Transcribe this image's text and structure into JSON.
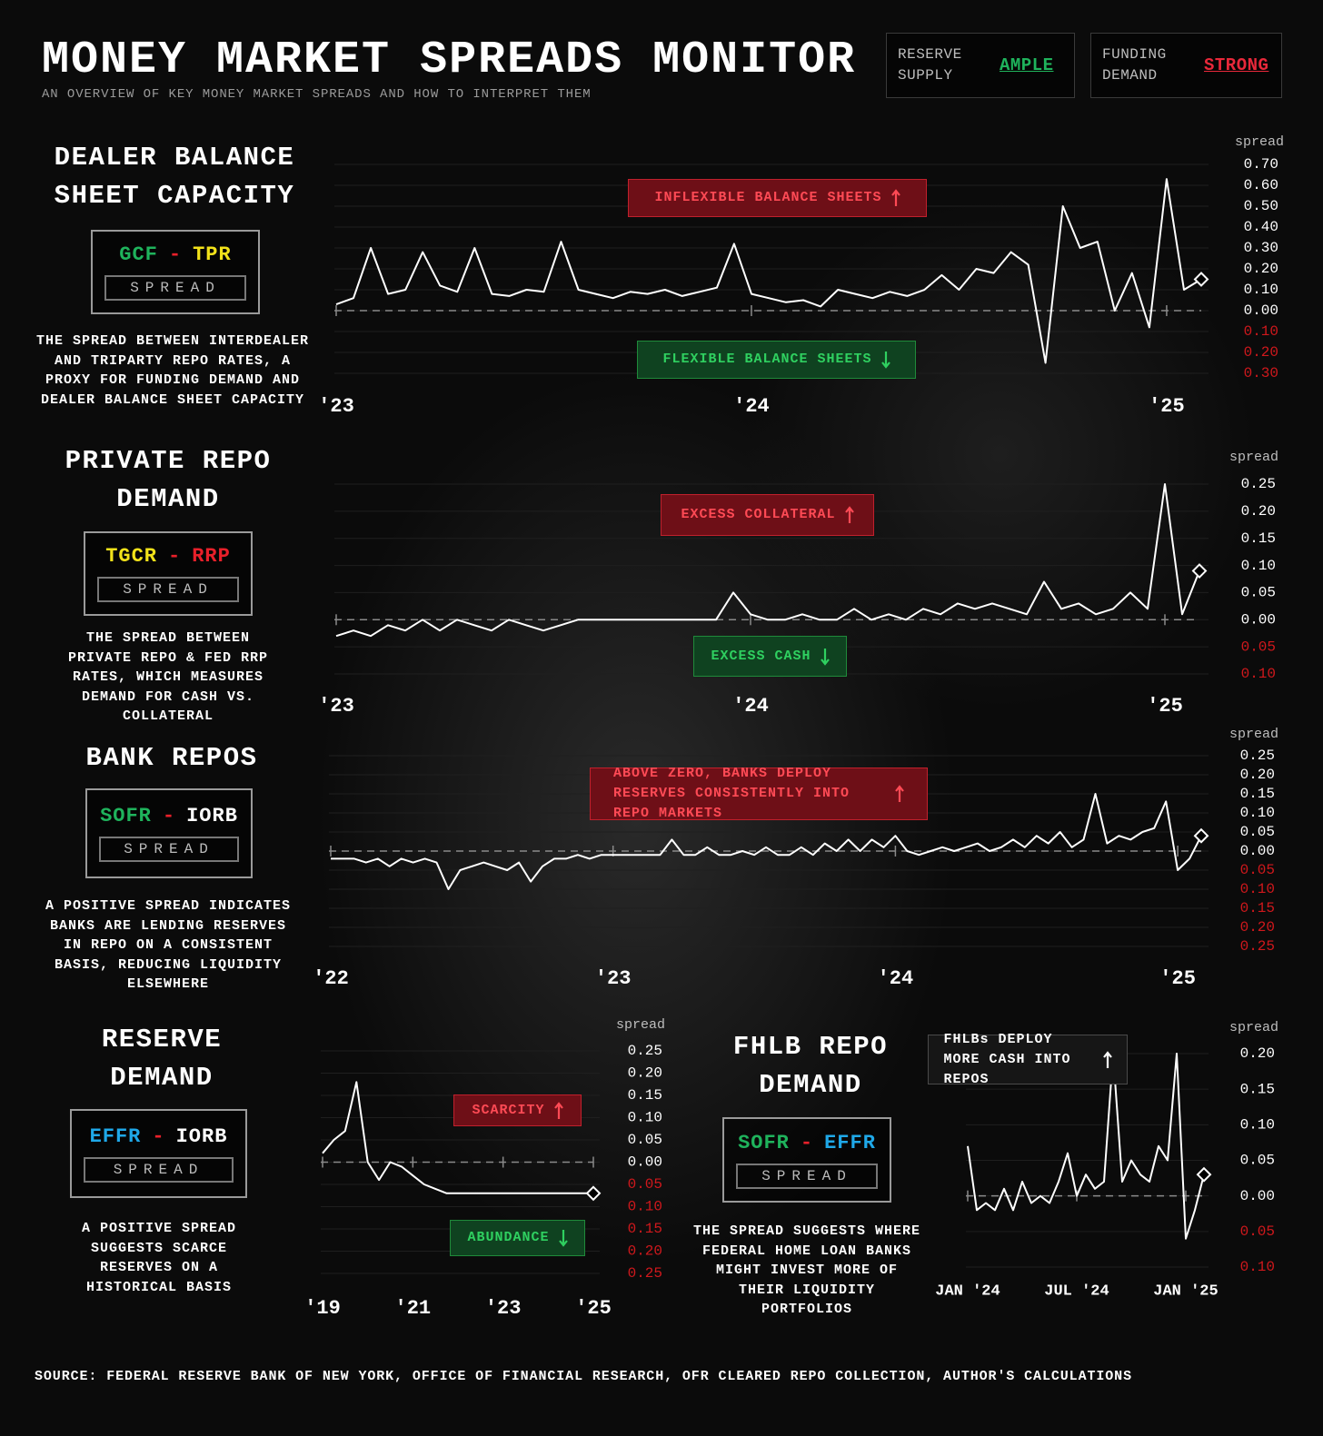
{
  "header": {
    "title": "MONEY MARKET SPREADS MONITOR",
    "subtitle": "AN OVERVIEW OF KEY MONEY MARKET SPREADS AND HOW TO INTERPRET THEM"
  },
  "status": [
    {
      "label": "RESERVE SUPPLY",
      "value": "AMPLE",
      "color": "#1fb35c"
    },
    {
      "label": "FUNDING DEMAND",
      "value": "STRONG",
      "color": "#e8283a"
    }
  ],
  "source": "SOURCE: FEDERAL RESERVE BANK OF NEW YORK, OFFICE OF FINANCIAL RESEARCH, OFR CLEARED REPO COLLECTION, AUTHOR'S CALCULATIONS",
  "chart_data": [
    {
      "type": "line",
      "title": "DEALER BALANCE SHEET CAPACITY",
      "formula": {
        "left": "GCF",
        "left_color": "#1fb35c",
        "op": "-",
        "op_color": "#e8202a",
        "right": "TPR",
        "right_color": "#f2e21a",
        "label": "SPREAD"
      },
      "description": "THE SPREAD BETWEEN INTERDEALER AND TRIPARTY REPO RATES, A PROXY FOR FUNDING DEMAND AND DEALER BALANCE SHEET CAPACITY",
      "y_label": "spread",
      "color": "#ffffff",
      "negative_tick_color": "#d0181c",
      "categories": [
        "'23",
        null,
        null,
        null,
        null,
        null,
        null,
        null,
        null,
        null,
        null,
        null,
        null,
        null,
        null,
        null,
        null,
        null,
        null,
        null,
        null,
        null,
        null,
        null,
        "'24",
        null,
        null,
        null,
        null,
        null,
        null,
        null,
        null,
        null,
        null,
        null,
        null,
        null,
        null,
        null,
        null,
        null,
        null,
        null,
        null,
        null,
        null,
        null,
        "'25",
        null,
        null
      ],
      "values": [
        0.03,
        0.06,
        0.3,
        0.08,
        0.1,
        0.28,
        0.12,
        0.09,
        0.3,
        0.08,
        0.07,
        0.1,
        0.09,
        0.33,
        0.1,
        0.08,
        0.06,
        0.09,
        0.08,
        0.1,
        0.07,
        0.09,
        0.11,
        0.32,
        0.08,
        0.06,
        0.04,
        0.05,
        0.02,
        0.1,
        0.08,
        0.06,
        0.09,
        0.07,
        0.1,
        0.17,
        0.1,
        0.2,
        0.18,
        0.28,
        0.22,
        -0.25,
        0.5,
        0.3,
        0.33,
        0.0,
        0.18,
        -0.08,
        0.63,
        0.1,
        0.15
      ],
      "ylim": [
        -0.3,
        0.7
      ],
      "yticks": [
        {
          "value": 0.7,
          "label": "0.70"
        },
        {
          "value": 0.6,
          "label": "0.60"
        },
        {
          "value": 0.5,
          "label": "0.50"
        },
        {
          "value": 0.4,
          "label": "0.40"
        },
        {
          "value": 0.3,
          "label": "0.30"
        },
        {
          "value": 0.2,
          "label": "0.20"
        },
        {
          "value": 0.1,
          "label": "0.10"
        },
        {
          "value": 0,
          "label": "0.00"
        },
        {
          "value": -0.1,
          "label": "0.10"
        },
        {
          "value": -0.2,
          "label": "0.20"
        },
        {
          "value": -0.3,
          "label": "0.30"
        }
      ],
      "grid": true,
      "annotations": [
        {
          "text": "INFLEXIBLE BALANCE SHEETS",
          "arrow": "up",
          "color": "#ff4a55",
          "fill": "#6e0f17",
          "stroke": "#c0202c"
        },
        {
          "text": "FLEXIBLE BALANCE SHEETS",
          "arrow": "down",
          "color": "#2fd060",
          "fill": "#0f4220",
          "stroke": "#1f8a3a"
        }
      ]
    },
    {
      "type": "line",
      "title": "PRIVATE REPO DEMAND",
      "formula": {
        "left": "TGCR",
        "left_color": "#f2e21a",
        "op": "-",
        "op_color": "#e8202a",
        "right": "RRP",
        "right_color": "#e8202a",
        "label": "SPREAD"
      },
      "description": "THE SPREAD BETWEEN PRIVATE REPO & FED RRP RATES, WHICH MEASURES DEMAND FOR CASH VS. COLLATERAL",
      "y_label": "spread",
      "color": "#ffffff",
      "negative_tick_color": "#d0181c",
      "categories": [
        "'23",
        null,
        null,
        null,
        null,
        null,
        null,
        null,
        null,
        null,
        null,
        null,
        null,
        null,
        null,
        null,
        null,
        null,
        null,
        null,
        null,
        null,
        null,
        null,
        "'24",
        null,
        null,
        null,
        null,
        null,
        null,
        null,
        null,
        null,
        null,
        null,
        null,
        null,
        null,
        null,
        null,
        null,
        null,
        null,
        null,
        null,
        null,
        null,
        "'25",
        null,
        null
      ],
      "values": [
        -0.03,
        -0.02,
        -0.03,
        -0.01,
        -0.02,
        0.0,
        -0.02,
        0.0,
        -0.01,
        -0.02,
        0.0,
        -0.01,
        -0.02,
        -0.01,
        0,
        0,
        0,
        0,
        0,
        0,
        0,
        0,
        0,
        0.05,
        0.01,
        0,
        0,
        0.01,
        0,
        0,
        0.02,
        0,
        0.01,
        0.0,
        0.02,
        0.01,
        0.03,
        0.02,
        0.03,
        0.02,
        0.01,
        0.07,
        0.02,
        0.03,
        0.01,
        0.02,
        0.05,
        0.02,
        0.25,
        0.01,
        0.09
      ],
      "ylim": [
        -0.1,
        0.25
      ],
      "yticks": [
        {
          "value": 0.25,
          "label": "0.25"
        },
        {
          "value": 0.2,
          "label": "0.20"
        },
        {
          "value": 0.15,
          "label": "0.15"
        },
        {
          "value": 0.1,
          "label": "0.10"
        },
        {
          "value": 0.05,
          "label": "0.05"
        },
        {
          "value": 0,
          "label": "0.00"
        },
        {
          "value": -0.05,
          "label": "0.05"
        },
        {
          "value": -0.1,
          "label": "0.10"
        }
      ],
      "grid": true,
      "annotations": [
        {
          "text": "EXCESS COLLATERAL",
          "arrow": "up",
          "color": "#ff4a55",
          "fill": "#6e0f17",
          "stroke": "#c0202c"
        },
        {
          "text": "EXCESS CASH",
          "arrow": "down",
          "color": "#2fd060",
          "fill": "#0f4220",
          "stroke": "#1f8a3a"
        }
      ]
    },
    {
      "type": "line",
      "title": "BANK REPOS",
      "formula": {
        "left": "SOFR",
        "left_color": "#1fb35c",
        "op": "-",
        "op_color": "#e8202a",
        "right": "IORB",
        "right_color": "#ffffff",
        "label": "SPREAD"
      },
      "description": "A POSITIVE SPREAD INDICATES BANKS ARE LENDING RESERVES IN REPO ON A CONSISTENT BASIS, REDUCING LIQUIDITY ELSEWHERE",
      "y_label": "spread",
      "color": "#ffffff",
      "negative_tick_color": "#d0181c",
      "categories": [
        "'22",
        null,
        null,
        null,
        null,
        null,
        null,
        null,
        null,
        null,
        null,
        null,
        null,
        null,
        null,
        null,
        null,
        null,
        null,
        null,
        null,
        null,
        null,
        null,
        "'23",
        null,
        null,
        null,
        null,
        null,
        null,
        null,
        null,
        null,
        null,
        null,
        null,
        null,
        null,
        null,
        null,
        null,
        null,
        null,
        null,
        null,
        null,
        null,
        "'24",
        null,
        null,
        null,
        null,
        null,
        null,
        null,
        null,
        null,
        null,
        null,
        null,
        null,
        null,
        null,
        null,
        null,
        null,
        null,
        null,
        null,
        null,
        null,
        "'25",
        null,
        null
      ],
      "values": [
        -0.02,
        -0.02,
        -0.02,
        -0.03,
        -0.02,
        -0.04,
        -0.02,
        -0.03,
        -0.02,
        -0.03,
        -0.1,
        -0.05,
        -0.04,
        -0.03,
        -0.04,
        -0.05,
        -0.03,
        -0.08,
        -0.04,
        -0.02,
        -0.02,
        -0.01,
        -0.02,
        -0.01,
        -0.01,
        -0.01,
        -0.01,
        -0.01,
        -0.01,
        0.03,
        -0.01,
        -0.01,
        0.01,
        -0.01,
        -0.01,
        0.0,
        -0.01,
        0.01,
        -0.01,
        -0.01,
        0.01,
        -0.01,
        0.02,
        0.0,
        0.03,
        0.0,
        0.03,
        0.01,
        0.04,
        0.0,
        -0.01,
        0.0,
        0.01,
        0.0,
        0.01,
        0.02,
        0.0,
        0.01,
        0.03,
        0.01,
        0.04,
        0.02,
        0.05,
        0.01,
        0.03,
        0.15,
        0.02,
        0.04,
        0.03,
        0.05,
        0.06,
        0.13,
        -0.05,
        -0.02,
        0.04
      ],
      "ylim": [
        -0.25,
        0.25
      ],
      "yticks": [
        {
          "value": 0.25,
          "label": "0.25"
        },
        {
          "value": 0.2,
          "label": "0.20"
        },
        {
          "value": 0.15,
          "label": "0.15"
        },
        {
          "value": 0.1,
          "label": "0.10"
        },
        {
          "value": 0.05,
          "label": "0.05"
        },
        {
          "value": 0,
          "label": "0.00"
        },
        {
          "value": -0.05,
          "label": "0.05"
        },
        {
          "value": -0.1,
          "label": "0.10"
        },
        {
          "value": -0.15,
          "label": "0.15"
        },
        {
          "value": -0.2,
          "label": "0.20"
        },
        {
          "value": -0.25,
          "label": "0.25"
        }
      ],
      "grid": true,
      "annotations": [
        {
          "text": "ABOVE ZERO, BANKS DEPLOY RESERVES CONSISTENTLY INTO REPO MARKETS",
          "arrow": "up",
          "color": "#ff4a55",
          "fill": "#6e0f17",
          "stroke": "#c0202c"
        }
      ]
    },
    {
      "type": "line",
      "title": "RESERVE DEMAND",
      "formula": {
        "left": "EFFR",
        "left_color": "#1fa8e8",
        "op": "-",
        "op_color": "#e8202a",
        "right": "IORB",
        "right_color": "#ffffff",
        "label": "SPREAD"
      },
      "description": "A POSITIVE SPREAD SUGGESTS SCARCE RESERVES ON A HISTORICAL BASIS",
      "y_label": "spread",
      "color": "#ffffff",
      "negative_tick_color": "#d0181c",
      "categories": [
        "'19",
        null,
        null,
        null,
        null,
        null,
        null,
        null,
        "'21",
        null,
        null,
        null,
        null,
        null,
        null,
        null,
        "'23",
        null,
        null,
        null,
        null,
        null,
        null,
        null,
        "'25"
      ],
      "values": [
        0.02,
        0.05,
        0.07,
        0.18,
        0.0,
        -0.04,
        0.0,
        -0.01,
        -0.03,
        -0.05,
        -0.06,
        -0.07,
        -0.07,
        -0.07,
        -0.07,
        -0.07,
        -0.07,
        -0.07,
        -0.07,
        -0.07,
        -0.07,
        -0.07,
        -0.07,
        -0.07,
        -0.07
      ],
      "ylim": [
        -0.25,
        0.25
      ],
      "yticks": [
        {
          "value": 0.25,
          "label": "0.25"
        },
        {
          "value": 0.2,
          "label": "0.20"
        },
        {
          "value": 0.15,
          "label": "0.15"
        },
        {
          "value": 0.1,
          "label": "0.10"
        },
        {
          "value": 0.05,
          "label": "0.05"
        },
        {
          "value": 0,
          "label": "0.00"
        },
        {
          "value": -0.05,
          "label": "0.05"
        },
        {
          "value": -0.1,
          "label": "0.10"
        },
        {
          "value": -0.15,
          "label": "0.15"
        },
        {
          "value": -0.2,
          "label": "0.20"
        },
        {
          "value": -0.25,
          "label": "0.25"
        }
      ],
      "grid": true,
      "annotations": [
        {
          "text": "SCARCITY",
          "arrow": "up",
          "color": "#ff4a55",
          "fill": "#6e0f17",
          "stroke": "#c0202c"
        },
        {
          "text": "ABUNDANCE",
          "arrow": "down",
          "color": "#2fd060",
          "fill": "#0f4220",
          "stroke": "#1f8a3a"
        }
      ]
    },
    {
      "type": "line",
      "title": "FHLB REPO DEMAND",
      "formula": {
        "left": "SOFR",
        "left_color": "#1fb35c",
        "op": "-",
        "op_color": "#e8202a",
        "right": "EFFR",
        "right_color": "#1fa8e8",
        "label": "SPREAD"
      },
      "description": "THE SPREAD SUGGESTS WHERE FEDERAL HOME LOAN BANKS MIGHT INVEST MORE OF THEIR LIQUIDITY PORTFOLIOS",
      "y_label": "spread",
      "color": "#ffffff",
      "negative_tick_color": "#d0181c",
      "categories": [
        "JAN '24",
        null,
        null,
        null,
        null,
        null,
        null,
        null,
        null,
        null,
        null,
        null,
        "JUL '24",
        null,
        null,
        null,
        null,
        null,
        null,
        null,
        null,
        null,
        null,
        null,
        "JAN '25",
        null,
        null
      ],
      "values": [
        0.07,
        -0.02,
        -0.01,
        -0.02,
        0.01,
        -0.02,
        0.02,
        -0.01,
        0.0,
        -0.01,
        0.02,
        0.06,
        0.0,
        0.03,
        0.01,
        0.02,
        0.2,
        0.02,
        0.05,
        0.03,
        0.02,
        0.07,
        0.05,
        0.2,
        -0.06,
        -0.02,
        0.03
      ],
      "ylim": [
        -0.1,
        0.2
      ],
      "yticks": [
        {
          "value": 0.2,
          "label": "0.20"
        },
        {
          "value": 0.15,
          "label": "0.15"
        },
        {
          "value": 0.1,
          "label": "0.10"
        },
        {
          "value": 0.05,
          "label": "0.05"
        },
        {
          "value": 0,
          "label": "0.00"
        },
        {
          "value": -0.05,
          "label": "0.05"
        },
        {
          "value": -0.1,
          "label": "0.10"
        }
      ],
      "grid": true,
      "annotations": [
        {
          "text": "FHLBs DEPLOY MORE CASH INTO REPOS",
          "arrow": "up",
          "color": "#ffffff",
          "fill": "#161616",
          "stroke": "#4a4a4a"
        }
      ]
    }
  ]
}
